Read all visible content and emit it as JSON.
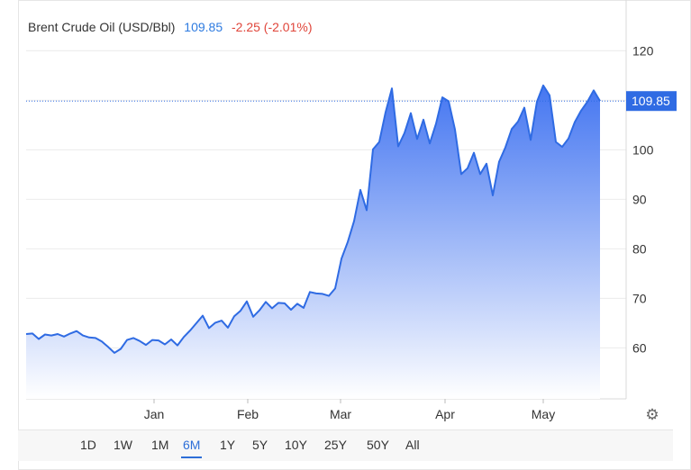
{
  "header": {
    "title": "Brent Crude Oil (USD/Bbl)",
    "price": "109.85",
    "change": "-2.25 (-2.01%)"
  },
  "colors": {
    "line": "#2f6be3",
    "fill_top": "#3b6ff0",
    "fill_bottom": "#ffffff",
    "price_text": "#2e7be0",
    "change_text": "#e0453a",
    "last_label_bg": "#2f6be3",
    "grid": "#ececec"
  },
  "range_buttons": [
    "1D",
    "1W",
    "1M",
    "6M",
    "1Y",
    "5Y",
    "10Y",
    "25Y",
    "50Y",
    "All"
  ],
  "active_range": "6M",
  "settings_icon": "gear-icon",
  "chart_data": {
    "type": "area",
    "y_axis_side": "right",
    "ylim": [
      50,
      125
    ],
    "y_ticks": [
      60,
      70,
      80,
      90,
      100,
      110,
      120
    ],
    "x_ticks": [
      "Jan",
      "Feb",
      "Mar",
      "Apr",
      "May"
    ],
    "last_value_label": "109.85",
    "grid": true,
    "series": [
      {
        "values": [
          62.8,
          62.9,
          61.8,
          62.7,
          62.5,
          62.8,
          62.3,
          62.9,
          63.4,
          62.5,
          62.1,
          62.0,
          61.3,
          60.2,
          59.0,
          59.8,
          61.6,
          62.0,
          61.4,
          60.6,
          61.6,
          61.5,
          60.7,
          61.7,
          60.5,
          62.2,
          63.5,
          65.0,
          66.5,
          64.0,
          65.1,
          65.5,
          64.1,
          66.4,
          67.5,
          69.4,
          66.3,
          67.6,
          69.3,
          68.0,
          69.1,
          69.0,
          67.7,
          68.9,
          68.1,
          71.3,
          71.0,
          70.9,
          70.5,
          72.0,
          78.0,
          81.4,
          85.6,
          91.9,
          87.8,
          100.1,
          101.6,
          107.6,
          112.4,
          100.7,
          103.4,
          107.4,
          102.2,
          106.1,
          101.3,
          105.3,
          110.6,
          109.8,
          104.1,
          95.1,
          96.3,
          99.4,
          95.1,
          97.2,
          90.8,
          97.6,
          100.5,
          104.2,
          105.7,
          108.5,
          102.0,
          109.7,
          113.0,
          111.0,
          101.6,
          100.6,
          102.3,
          105.6,
          107.9,
          109.7,
          112.0,
          109.85
        ]
      }
    ]
  }
}
